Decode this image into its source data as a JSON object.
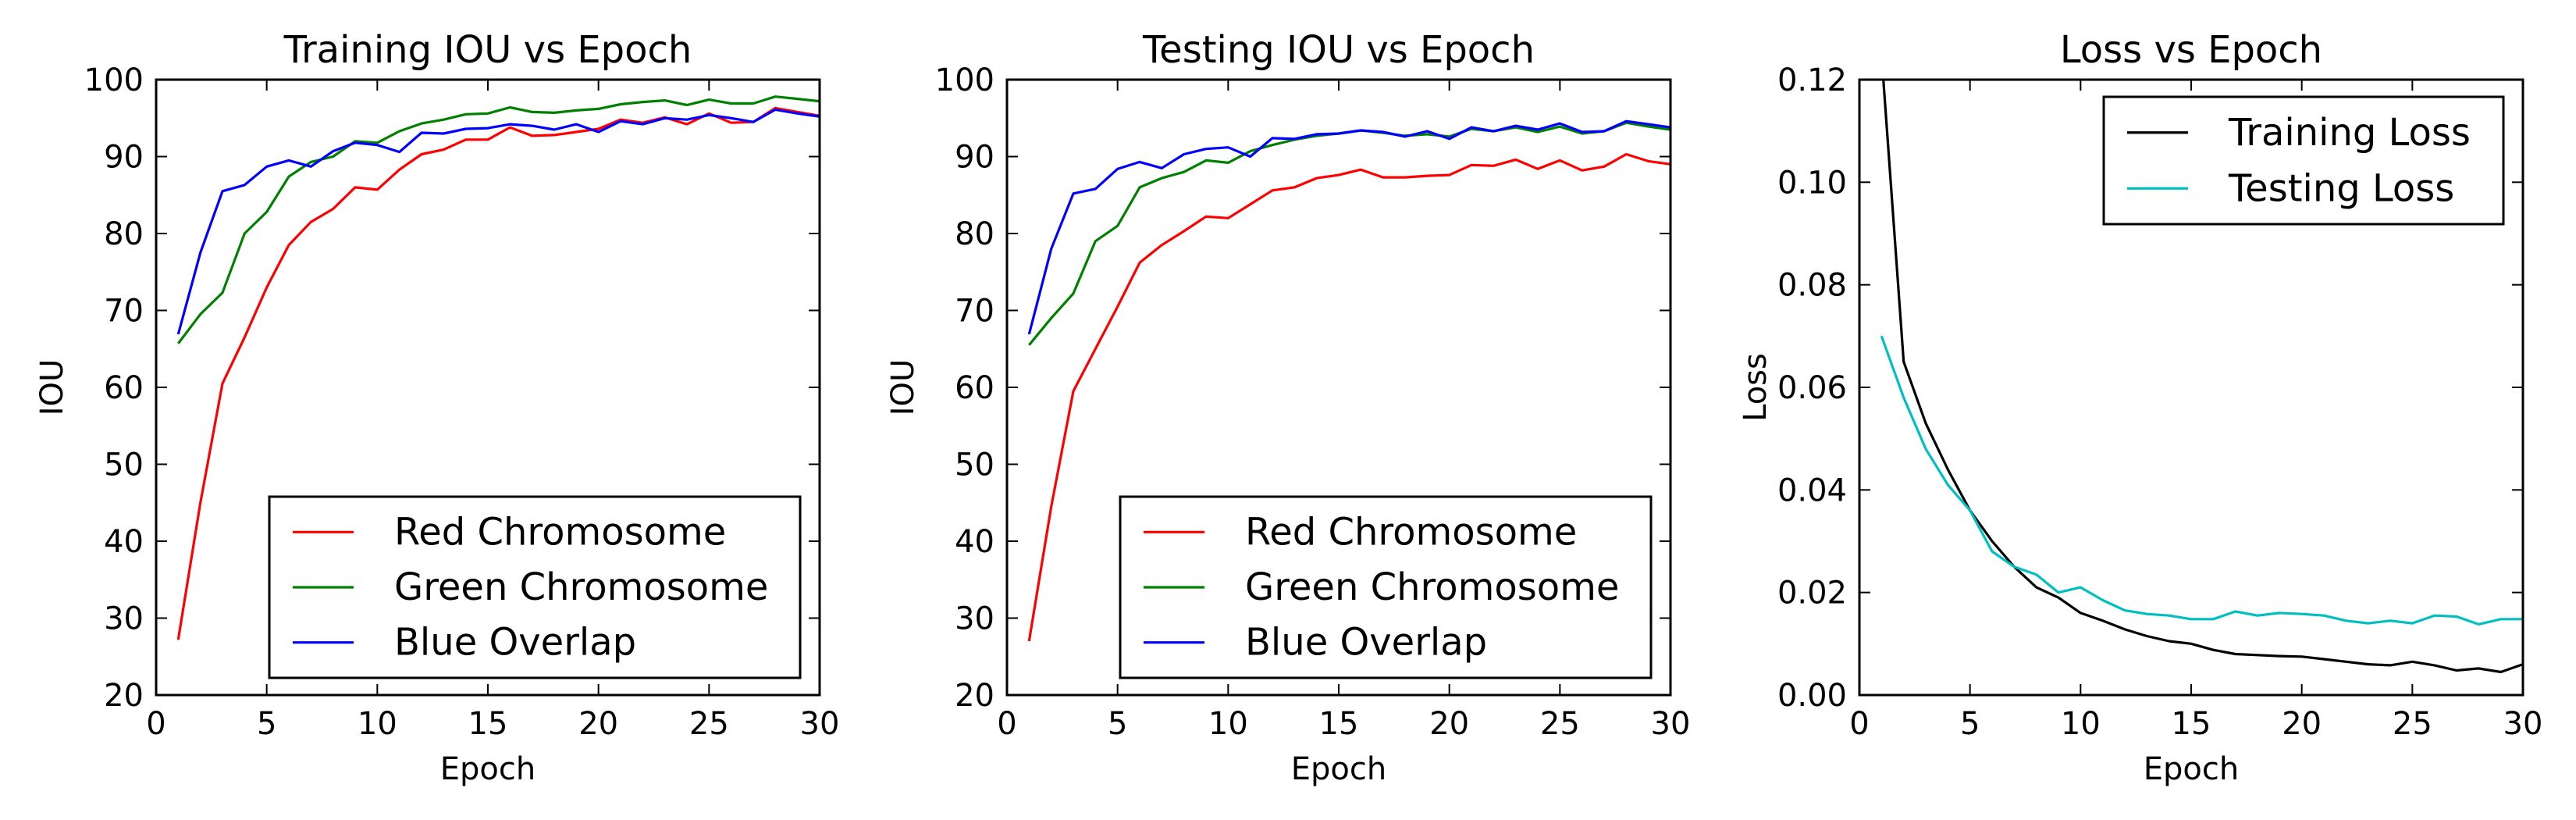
{
  "chart_data": [
    {
      "type": "line",
      "title": "Training IOU vs Epoch",
      "xlabel": "Epoch",
      "ylabel": "IOU",
      "xlim": [
        0,
        30
      ],
      "ylim": [
        20,
        100
      ],
      "xticks": [
        0,
        5,
        10,
        15,
        20,
        25,
        30
      ],
      "yticks": [
        20,
        30,
        40,
        50,
        60,
        70,
        80,
        90,
        100
      ],
      "grid": false,
      "legend_position": "lower-right",
      "x": [
        1,
        2,
        3,
        4,
        5,
        6,
        7,
        8,
        9,
        10,
        11,
        12,
        13,
        14,
        15,
        16,
        17,
        18,
        19,
        20,
        21,
        22,
        23,
        24,
        25,
        26,
        27,
        28,
        29,
        30
      ],
      "series": [
        {
          "name": "Red Chromosome",
          "color": "#ff0000",
          "values": [
            27.2,
            45.0,
            60.5,
            66.5,
            73.0,
            78.5,
            81.5,
            83.2,
            86.0,
            85.7,
            88.3,
            90.3,
            90.9,
            92.2,
            92.2,
            93.8,
            92.7,
            92.8,
            93.2,
            93.6,
            94.8,
            94.4,
            95.1,
            94.2,
            95.6,
            94.4,
            94.5,
            96.3,
            95.8,
            95.3
          ]
        },
        {
          "name": "Green Chromosome",
          "color": "#008000",
          "values": [
            65.7,
            69.5,
            72.3,
            80.0,
            82.8,
            87.4,
            89.3,
            90.0,
            92.0,
            91.8,
            93.3,
            94.3,
            94.8,
            95.5,
            95.6,
            96.4,
            95.8,
            95.7,
            96.0,
            96.2,
            96.8,
            97.1,
            97.3,
            96.7,
            97.4,
            96.9,
            96.9,
            97.8,
            97.5,
            97.2
          ]
        },
        {
          "name": "Blue Overlap",
          "color": "#0000ff",
          "values": [
            66.9,
            77.5,
            85.5,
            86.3,
            88.7,
            89.5,
            88.7,
            90.7,
            91.8,
            91.5,
            90.6,
            93.1,
            93.0,
            93.6,
            93.7,
            94.2,
            94.0,
            93.5,
            94.2,
            93.2,
            94.6,
            94.2,
            95.0,
            94.8,
            95.4,
            95.0,
            94.5,
            96.1,
            95.6,
            95.2
          ]
        }
      ]
    },
    {
      "type": "line",
      "title": "Testing IOU vs Epoch",
      "xlabel": "Epoch",
      "ylabel": "IOU",
      "xlim": [
        0,
        30
      ],
      "ylim": [
        20,
        100
      ],
      "xticks": [
        0,
        5,
        10,
        15,
        20,
        25,
        30
      ],
      "yticks": [
        20,
        30,
        40,
        50,
        60,
        70,
        80,
        90,
        100
      ],
      "grid": false,
      "legend_position": "lower-right",
      "x": [
        1,
        2,
        3,
        4,
        5,
        6,
        7,
        8,
        9,
        10,
        11,
        12,
        13,
        14,
        15,
        16,
        17,
        18,
        19,
        20,
        21,
        22,
        23,
        24,
        25,
        26,
        27,
        28,
        29,
        30
      ],
      "series": [
        {
          "name": "Red Chromosome",
          "color": "#ff0000",
          "values": [
            27.0,
            44.5,
            59.5,
            65.0,
            70.5,
            76.2,
            78.5,
            80.3,
            82.2,
            82.0,
            83.8,
            85.6,
            86.0,
            87.2,
            87.6,
            88.3,
            87.3,
            87.3,
            87.5,
            87.6,
            88.9,
            88.8,
            89.6,
            88.4,
            89.5,
            88.2,
            88.7,
            90.3,
            89.4,
            89.0
          ]
        },
        {
          "name": "Green Chromosome",
          "color": "#008000",
          "values": [
            65.5,
            69.0,
            72.2,
            79.0,
            81.0,
            86.0,
            87.2,
            88.0,
            89.5,
            89.2,
            90.7,
            91.5,
            92.2,
            92.7,
            93.0,
            93.4,
            93.1,
            92.7,
            92.9,
            92.6,
            93.6,
            93.3,
            93.8,
            93.2,
            93.9,
            93.0,
            93.3,
            94.4,
            93.9,
            93.5
          ]
        },
        {
          "name": "Blue Overlap",
          "color": "#0000ff",
          "values": [
            66.9,
            78.0,
            85.2,
            85.8,
            88.4,
            89.3,
            88.5,
            90.3,
            91.0,
            91.2,
            90.0,
            92.4,
            92.3,
            92.9,
            93.0,
            93.4,
            93.2,
            92.6,
            93.3,
            92.3,
            93.8,
            93.3,
            94.0,
            93.5,
            94.3,
            93.2,
            93.3,
            94.6,
            94.2,
            93.8
          ]
        }
      ]
    },
    {
      "type": "line",
      "title": "Loss vs Epoch",
      "xlabel": "Epoch",
      "ylabel": "Loss",
      "xlim": [
        0,
        30
      ],
      "ylim": [
        0,
        0.12
      ],
      "xticks": [
        0,
        5,
        10,
        15,
        20,
        25,
        30
      ],
      "yticks": [
        "0.00",
        "0.02",
        "0.04",
        "0.06",
        "0.08",
        "0.10",
        "0.12"
      ],
      "grid": false,
      "legend_position": "upper-right",
      "x": [
        1,
        2,
        3,
        4,
        5,
        6,
        7,
        8,
        9,
        10,
        11,
        12,
        13,
        14,
        15,
        16,
        17,
        18,
        19,
        20,
        21,
        22,
        23,
        24,
        25,
        26,
        27,
        28,
        29,
        30
      ],
      "series": [
        {
          "name": "Training Loss",
          "color": "#000000",
          "values": [
            0.125,
            0.065,
            0.053,
            0.044,
            0.036,
            0.03,
            0.025,
            0.021,
            0.019,
            0.016,
            0.0145,
            0.0128,
            0.0115,
            0.0105,
            0.01,
            0.0088,
            0.008,
            0.0078,
            0.0076,
            0.0075,
            0.007,
            0.0065,
            0.006,
            0.0058,
            0.0065,
            0.0058,
            0.0048,
            0.0052,
            0.0045,
            0.006
          ]
        },
        {
          "name": "Testing Loss",
          "color": "#00bfbf",
          "values": [
            0.07,
            0.058,
            0.048,
            0.041,
            0.036,
            0.028,
            0.025,
            0.0235,
            0.02,
            0.021,
            0.0185,
            0.0165,
            0.0158,
            0.0155,
            0.0148,
            0.0148,
            0.0163,
            0.0155,
            0.016,
            0.0158,
            0.0155,
            0.0145,
            0.014,
            0.0145,
            0.014,
            0.0155,
            0.0153,
            0.0138,
            0.0148,
            0.0148
          ]
        }
      ]
    }
  ]
}
